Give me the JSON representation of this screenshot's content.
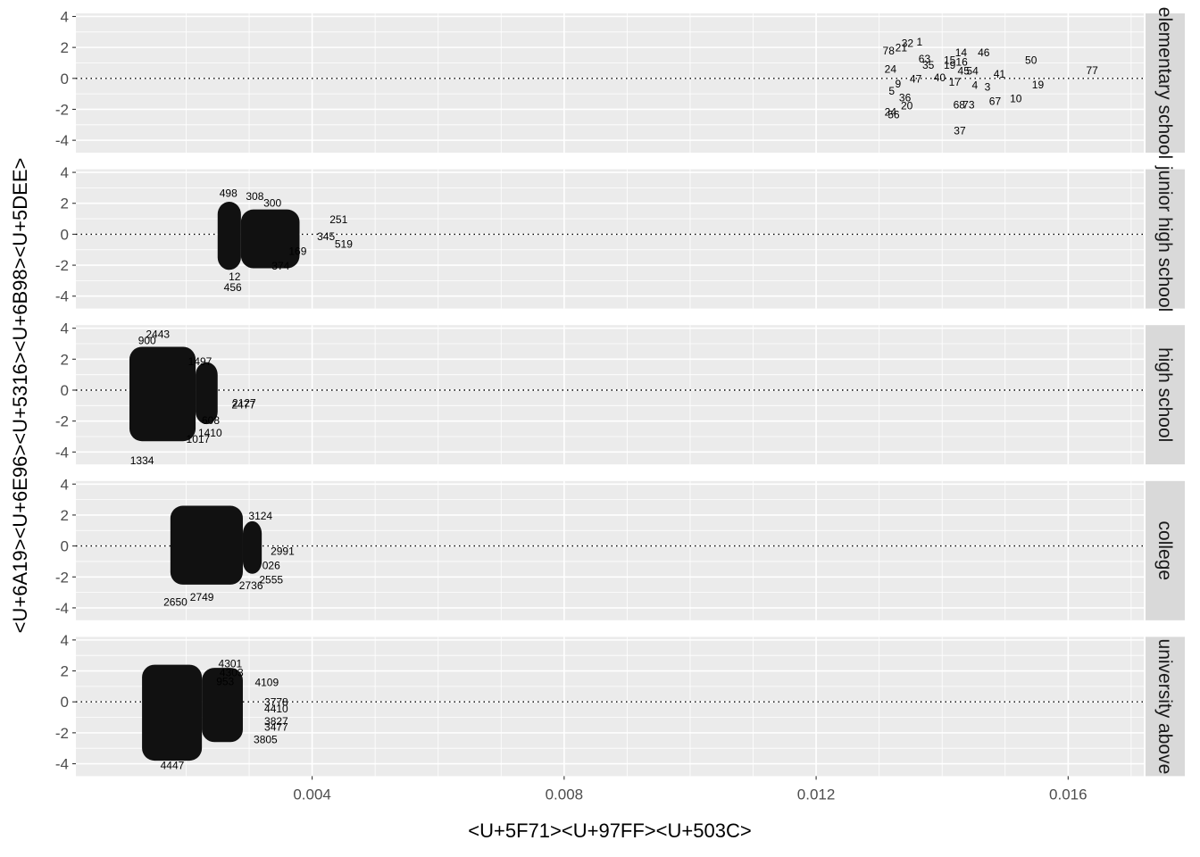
{
  "chart_data": {
    "type": "scatter",
    "xlabel": "<U+5F71><U+97FF><U+503C>",
    "ylabel": "<U+6A19><U+6E96><U+5316><U+6B98><U+5DEE>",
    "x_ticks": [
      0.004,
      0.008,
      0.012,
      0.016
    ],
    "x_tick_labels": [
      "0.004",
      "0.008",
      "0.012",
      "0.016"
    ],
    "y_ticks": [
      -4,
      -2,
      0,
      2,
      4
    ],
    "y_tick_labels": [
      "-4",
      "-2",
      "0",
      "2",
      "4"
    ],
    "xlim": [
      0.00025,
      0.0172
    ],
    "ylim": [
      -4.8,
      4.2
    ],
    "reference_line": {
      "y": 0,
      "style": "dotted"
    },
    "colors": {
      "panel_bg": "#ebebeb",
      "grid": "#ffffff",
      "strip_bg": "#d9d9d9",
      "text": "#000000"
    },
    "panels": [
      {
        "strip": "elementary school",
        "points": [
          {
            "label": "1",
            "x": 0.01364,
            "y": 2.35
          },
          {
            "label": "32",
            "x": 0.01345,
            "y": 2.28
          },
          {
            "label": "78",
            "x": 0.01315,
            "y": 1.78
          },
          {
            "label": "21",
            "x": 0.01335,
            "y": 1.98
          },
          {
            "label": "63",
            "x": 0.01372,
            "y": 1.25
          },
          {
            "label": "14",
            "x": 0.0143,
            "y": 1.65
          },
          {
            "label": "46",
            "x": 0.01466,
            "y": 1.65
          },
          {
            "label": "15",
            "x": 0.01412,
            "y": 1.18
          },
          {
            "label": "16",
            "x": 0.01431,
            "y": 1.05
          },
          {
            "label": "19",
            "x": 0.01412,
            "y": 0.85
          },
          {
            "label": "35",
            "x": 0.01378,
            "y": 0.85
          },
          {
            "label": "50",
            "x": 0.01541,
            "y": 1.18
          },
          {
            "label": "77",
            "x": 0.01638,
            "y": 0.52
          },
          {
            "label": "24",
            "x": 0.01318,
            "y": 0.58
          },
          {
            "label": "45",
            "x": 0.01434,
            "y": 0.48
          },
          {
            "label": "54",
            "x": 0.01448,
            "y": 0.48
          },
          {
            "label": "41",
            "x": 0.01491,
            "y": 0.28
          },
          {
            "label": "40",
            "x": 0.01396,
            "y": 0.05
          },
          {
            "label": "17",
            "x": 0.0142,
            "y": -0.25
          },
          {
            "label": "47",
            "x": 0.01358,
            "y": -0.05
          },
          {
            "label": "9",
            "x": 0.0133,
            "y": -0.35
          },
          {
            "label": "4",
            "x": 0.01452,
            "y": -0.45
          },
          {
            "label": "3",
            "x": 0.01472,
            "y": -0.55
          },
          {
            "label": "19",
            "x": 0.01552,
            "y": -0.42
          },
          {
            "label": "10",
            "x": 0.01517,
            "y": -1.3
          },
          {
            "label": "67",
            "x": 0.01484,
            "y": -1.48
          },
          {
            "label": "5",
            "x": 0.0132,
            "y": -0.82
          },
          {
            "label": "36",
            "x": 0.01341,
            "y": -1.25
          },
          {
            "label": "20",
            "x": 0.01344,
            "y": -1.78
          },
          {
            "label": "68",
            "x": 0.01427,
            "y": -1.7
          },
          {
            "label": "73",
            "x": 0.01442,
            "y": -1.7
          },
          {
            "label": "24",
            "x": 0.01318,
            "y": -2.18
          },
          {
            "label": "56",
            "x": 0.01323,
            "y": -2.35
          },
          {
            "label": "37",
            "x": 0.01428,
            "y": -3.38
          }
        ]
      },
      {
        "strip": "junior high school",
        "points": [
          {
            "label": "498",
            "x": 0.00267,
            "y": 2.65
          },
          {
            "label": "308",
            "x": 0.00309,
            "y": 2.45
          },
          {
            "label": "300",
            "x": 0.00337,
            "y": 2.02
          },
          {
            "label": "251",
            "x": 0.00442,
            "y": 0.95
          },
          {
            "label": "345",
            "x": 0.00422,
            "y": -0.15
          },
          {
            "label": "519",
            "x": 0.0045,
            "y": -0.65
          },
          {
            "label": "169",
            "x": 0.00377,
            "y": -1.1
          },
          {
            "label": "374",
            "x": 0.0035,
            "y": -2.05
          },
          {
            "label": "12",
            "x": 0.00277,
            "y": -2.75
          },
          {
            "label": "456",
            "x": 0.00274,
            "y": -3.45
          }
        ]
      },
      {
        "strip": "high school",
        "points": [
          {
            "label": "2443",
            "x": 0.00155,
            "y": 3.6
          },
          {
            "label": "900",
            "x": 0.00138,
            "y": 3.2
          },
          {
            "label": "1497",
            "x": 0.00222,
            "y": 1.85
          },
          {
            "label": "2127",
            "x": 0.00292,
            "y": -0.85
          },
          {
            "label": "2477",
            "x": 0.00291,
            "y": -0.95
          },
          {
            "label": "608",
            "x": 0.00239,
            "y": -1.95
          },
          {
            "label": "1410",
            "x": 0.00238,
            "y": -2.78
          },
          {
            "label": "1017",
            "x": 0.00219,
            "y": -3.17
          },
          {
            "label": "1334",
            "x": 0.0013,
            "y": -4.57
          }
        ]
      },
      {
        "strip": "college",
        "points": [
          {
            "label": "3124",
            "x": 0.00318,
            "y": 1.95
          },
          {
            "label": "2991",
            "x": 0.00353,
            "y": -0.35
          },
          {
            "label": "026",
            "x": 0.00335,
            "y": -1.25
          },
          {
            "label": "2555",
            "x": 0.00335,
            "y": -2.2
          },
          {
            "label": "2736",
            "x": 0.00303,
            "y": -2.55
          },
          {
            "label": "2749",
            "x": 0.00225,
            "y": -3.3
          },
          {
            "label": "2650",
            "x": 0.00183,
            "y": -3.62
          }
        ]
      },
      {
        "strip": "university above",
        "points": [
          {
            "label": "4301",
            "x": 0.0027,
            "y": 2.45
          },
          {
            "label": "4303",
            "x": 0.00272,
            "y": 1.9
          },
          {
            "label": "4109",
            "x": 0.00328,
            "y": 1.25
          },
          {
            "label": "953",
            "x": 0.00262,
            "y": 1.3
          },
          {
            "label": "3778",
            "x": 0.00343,
            "y": -0.02
          },
          {
            "label": "4410",
            "x": 0.00343,
            "y": -0.45
          },
          {
            "label": "3827",
            "x": 0.00343,
            "y": -1.25
          },
          {
            "label": "3477",
            "x": 0.00343,
            "y": -1.62
          },
          {
            "label": "3805",
            "x": 0.00326,
            "y": -2.45
          },
          {
            "label": "4447",
            "x": 0.00178,
            "y": -4.12
          }
        ]
      }
    ]
  }
}
